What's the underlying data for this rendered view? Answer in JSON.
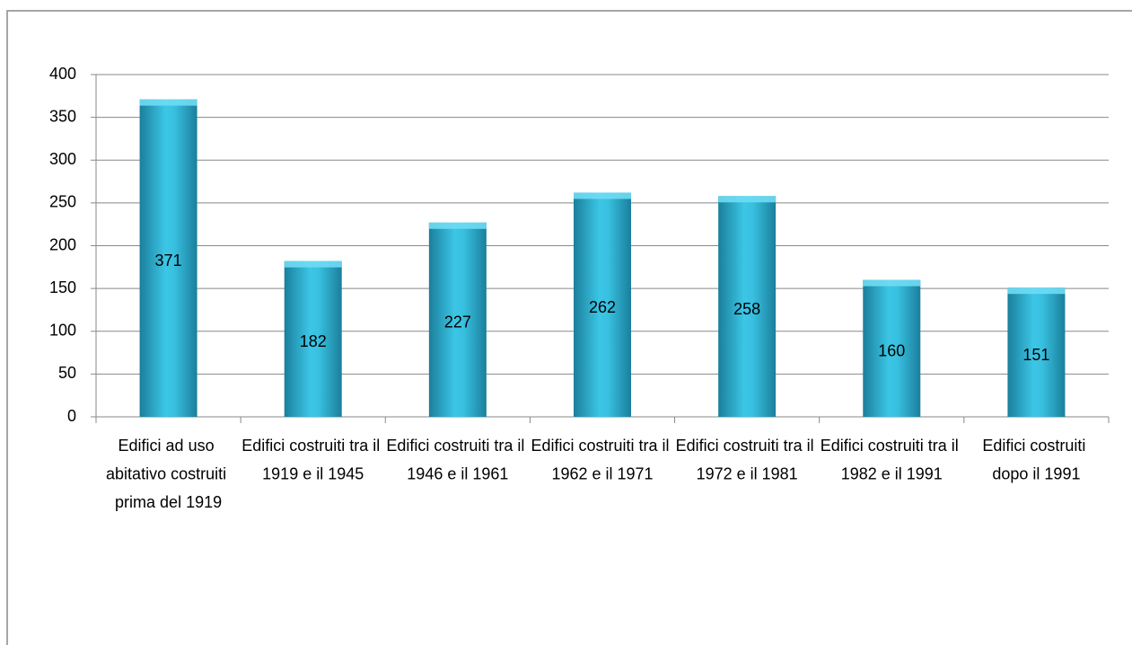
{
  "chart_data": {
    "type": "bar",
    "categories": [
      "Edifici ad uso abitativo costruiti prima del 1919",
      "Edifici costruiti tra il 1919 e il 1945",
      "Edifici costruiti tra il 1946 e il 1961",
      "Edifici costruiti tra il 1962 e il 1971",
      "Edifici costruiti tra il 1972 e il 1981",
      "Edifici costruiti tra il 1982 e il 1991",
      "Edifici costruiti dopo il 1991"
    ],
    "values": [
      371,
      182,
      227,
      262,
      258,
      160,
      151
    ],
    "color": "#2fb4d6",
    "ylim": [
      0,
      400
    ],
    "yticks": [
      0,
      50,
      100,
      150,
      200,
      250,
      300,
      350,
      400
    ],
    "grid": true
  }
}
